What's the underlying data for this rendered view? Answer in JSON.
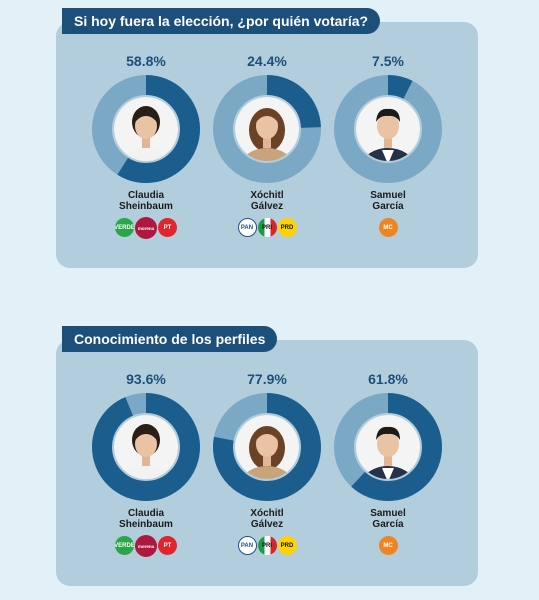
{
  "chart_data": [
    {
      "type": "donut",
      "title": "Si hoy fuera la elección, ¿por quién votaría?",
      "unit": "%",
      "categories": [
        "Claudia Sheinbaum",
        "Xóchitl Gálvez",
        "Samuel García"
      ],
      "values": [
        58.8,
        24.4,
        7.5
      ],
      "labels": [
        "58.8%",
        "24.4%",
        "7.5%"
      ],
      "ylim": [
        0,
        100
      ]
    },
    {
      "type": "donut",
      "title": "Conocimiento de los perfiles",
      "unit": "%",
      "categories": [
        "Claudia Sheinbaum",
        "Xóchitl Gálvez",
        "Samuel García"
      ],
      "values": [
        93.6,
        77.9,
        61.8
      ],
      "labels": [
        "93.6%",
        "77.9%",
        "61.8%"
      ],
      "ylim": [
        0,
        100
      ]
    }
  ],
  "candidates": [
    {
      "name_line1": "Claudia",
      "name_line2": "Sheinbaum",
      "parties": [
        {
          "label": "VERDE",
          "icon": "pvem-logo-icon",
          "cls": "logo-pvem"
        },
        {
          "label": "morena",
          "icon": "morena-logo-icon",
          "cls": "logo-morena"
        },
        {
          "label": "PT",
          "icon": "pt-logo-icon",
          "cls": "logo-pt"
        }
      ]
    },
    {
      "name_line1": "Xóchitl",
      "name_line2": "Gálvez",
      "parties": [
        {
          "label": "PAN",
          "icon": "pan-logo-icon",
          "cls": "logo-pan"
        },
        {
          "label": "PRI",
          "icon": "pri-logo-icon",
          "cls": "logo-pri"
        },
        {
          "label": "PRD",
          "icon": "prd-logo-icon",
          "cls": "logo-prd"
        }
      ]
    },
    {
      "name_line1": "Samuel",
      "name_line2": "García",
      "parties": [
        {
          "label": "MC",
          "icon": "mc-logo-icon",
          "cls": "logo-mc"
        }
      ]
    }
  ],
  "colors": {
    "filled": "#1b5e8e",
    "remaining": "#7ba8c4",
    "panel": "#b2cedd",
    "title_bg": "#1d4f7b"
  }
}
